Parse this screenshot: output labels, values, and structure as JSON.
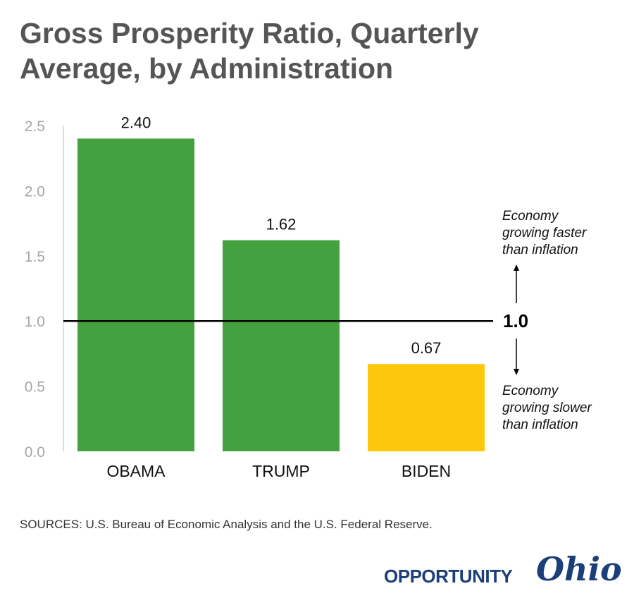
{
  "title_lines": [
    "Gross Prosperity Ratio, Quarterly",
    "Average, by Administration"
  ],
  "chart_data": {
    "type": "bar",
    "title": "Gross Prosperity Ratio, Quarterly Average, by Administration",
    "categories": [
      "OBAMA",
      "TRUMP",
      "BIDEN"
    ],
    "values": [
      2.4,
      1.62,
      0.67
    ],
    "value_labels": [
      "2.40",
      "1.62",
      "0.67"
    ],
    "bar_colors": [
      "#43a13f",
      "#43a13f",
      "#fdc70b"
    ],
    "ylim": [
      0,
      2.5
    ],
    "yticks": [
      "0.0",
      "0.5",
      "1.0",
      "1.5",
      "2.0",
      "2.5"
    ],
    "grid": false,
    "reference_line": {
      "value": 1.0,
      "label": "1.0"
    },
    "annotations": {
      "above": [
        "Economy",
        "growing faster",
        "than inflation"
      ],
      "below": [
        "Economy",
        "growing slower",
        "than inflation"
      ]
    }
  },
  "source": "SOURCES: U.S. Bureau of Economic Analysis and the U.S. Federal Reserve.",
  "logo": {
    "word": "OPPORTUNITY",
    "script": "Ohio"
  }
}
